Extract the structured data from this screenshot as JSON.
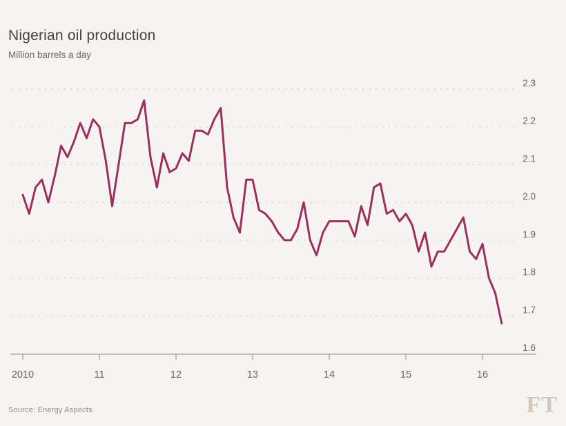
{
  "header": {
    "title": "Nigerian oil production",
    "subtitle": "Million barrels a day"
  },
  "footer": {
    "source": "Source: Energy Aspects",
    "logo": "FT"
  },
  "colors": {
    "background": "#f5f4f2",
    "line": "#9e2f5c",
    "axis": "#a29d92",
    "grid_dots": "#c6c0b2",
    "tick_label": "#66635c",
    "title_text": "#43423e",
    "subtitle_text": "#6d6962",
    "source_text": "#8f8b83",
    "ft_logo": "#d4c8b5"
  },
  "chart_data": {
    "type": "line",
    "title": "Nigerian oil production",
    "subtitle": "Million barrels a day",
    "ylabel": "Million barrels a day",
    "xlabel": "",
    "series_name": "Nigerian oil production",
    "frequency": "monthly",
    "x_start": "2010-01",
    "x_end": "2016-04",
    "values": [
      2.02,
      1.97,
      2.04,
      2.06,
      2.0,
      2.07,
      2.15,
      2.12,
      2.16,
      2.21,
      2.17,
      2.22,
      2.2,
      2.11,
      1.99,
      2.1,
      2.21,
      2.21,
      2.22,
      2.27,
      2.12,
      2.04,
      2.13,
      2.08,
      2.09,
      2.13,
      2.11,
      2.19,
      2.19,
      2.18,
      2.22,
      2.25,
      2.04,
      1.96,
      1.92,
      2.06,
      2.06,
      1.98,
      1.97,
      1.95,
      1.92,
      1.9,
      1.9,
      1.93,
      2.0,
      1.9,
      1.86,
      1.92,
      1.95,
      1.95,
      1.95,
      1.95,
      1.91,
      1.99,
      1.94,
      2.04,
      2.05,
      1.97,
      1.98,
      1.95,
      1.97,
      1.94,
      1.87,
      1.92,
      1.83,
      1.87,
      1.87,
      1.9,
      1.93,
      1.96,
      1.87,
      1.85,
      1.89,
      1.8,
      1.76,
      1.68
    ],
    "ylim": [
      1.6,
      2.3
    ],
    "yticks": [
      "2.3",
      "2.2",
      "2.1",
      "2.0",
      "1.9",
      "1.8",
      "1.7",
      "1.6"
    ],
    "xticks": [
      "2010",
      "11",
      "12",
      "13",
      "14",
      "15",
      "16"
    ],
    "grid": "dotted-horizontal",
    "legend": "none",
    "y_axis_side": "right",
    "source": "Source: Energy Aspects"
  }
}
